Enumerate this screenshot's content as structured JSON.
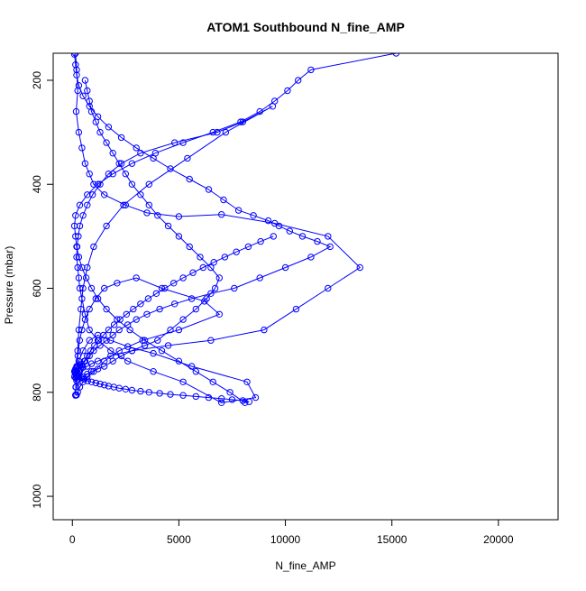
{
  "chart_data": {
    "type": "line",
    "title": "ATOM1 Southbound N_fine_AMP",
    "xlabel": "N_fine_AMP",
    "ylabel": "Pressure (mbar)",
    "xlim": [
      -900,
      22800
    ],
    "ylim": [
      1045,
      148
    ],
    "y_reversed": true,
    "x_ticks": [
      0,
      5000,
      10000,
      15000,
      20000
    ],
    "x_tick_labels": [
      "0",
      "5000",
      "10000",
      "15000",
      "20000"
    ],
    "y_ticks": [
      200,
      400,
      600,
      800,
      1000
    ],
    "y_tick_labels": [
      "200",
      "400",
      "600",
      "800",
      "1000"
    ],
    "grid": false,
    "legend": "none",
    "marker": "open-circle",
    "series_color": "#0000ff",
    "series": [
      {
        "x": [
          150,
          200,
          250,
          180,
          300,
          450,
          600,
          800,
          1000,
          1500,
          2500,
          3500,
          5000,
          7000,
          9500,
          12000,
          13500,
          12000,
          10500,
          9000,
          6500,
          4500,
          2800,
          1800,
          1200,
          900,
          700,
          500,
          400,
          300,
          250,
          200,
          150,
          100,
          150,
          300,
          500,
          800,
          1200,
          1800,
          2600,
          3800,
          5600,
          8200,
          8600,
          7000,
          5200,
          3800,
          2600,
          1800,
          1200,
          800,
          600,
          450,
          350,
          300,
          250,
          200,
          220,
          280,
          350,
          500,
          700,
          950,
          1300,
          1700,
          2300,
          3200,
          4800,
          6800,
          8000,
          9400,
          7200,
          5400,
          3600,
          2400,
          1600,
          1000,
          700,
          500,
          400,
          300,
          250,
          200,
          180,
          160,
          150,
          170,
          200,
          260,
          340,
          450,
          600,
          800,
          1100,
          1500,
          2100,
          3000,
          4200,
          6200,
          6900,
          5000,
          3300,
          2200,
          1500,
          1000,
          700,
          500,
          350,
          250,
          200,
          150
        ],
        "y": [
          148,
          180,
          220,
          260,
          300,
          330,
          360,
          380,
          400,
          420,
          440,
          455,
          462,
          458,
          475,
          500,
          560,
          600,
          640,
          680,
          700,
          710,
          720,
          730,
          740,
          745,
          750,
          752,
          755,
          760,
          765,
          770,
          772,
          770,
          760,
          740,
          720,
          700,
          690,
          700,
          712,
          725,
          750,
          780,
          810,
          820,
          780,
          760,
          740,
          720,
          700,
          680,
          650,
          620,
          600,
          580,
          560,
          540,
          520,
          500,
          480,
          460,
          440,
          420,
          400,
          380,
          360,
          340,
          320,
          300,
          280,
          250,
          300,
          350,
          400,
          440,
          480,
          520,
          560,
          600,
          640,
          680,
          720,
          750,
          770,
          790,
          805,
          790,
          760,
          730,
          700,
          680,
          660,
          640,
          620,
          600,
          590,
          580,
          600,
          625,
          650,
          680,
          700,
          720,
          740,
          760,
          770,
          780,
          790,
          800,
          805,
          806
        ]
      },
      {
        "x": [
          100,
          150,
          200,
          300,
          500,
          800,
          1200,
          1700,
          2300,
          3000,
          3800,
          4600,
          5500,
          6400,
          7100,
          7800,
          8500,
          9200,
          9700,
          10200,
          10800,
          11500,
          12100,
          11200,
          10000,
          8800,
          7600,
          6500,
          5600,
          4800,
          4100,
          3500,
          3000,
          2600,
          2200,
          1900,
          1600,
          1300,
          1000,
          800,
          600,
          450,
          350,
          250,
          200,
          150,
          120,
          100,
          120,
          160,
          220,
          300,
          420,
          560,
          720,
          900,
          1100,
          1300,
          1500,
          1700,
          1950,
          2200,
          2500,
          2800,
          3200,
          3600,
          4100,
          4600,
          5200,
          5800,
          6400,
          7000,
          7500,
          8000,
          8300,
          8100,
          7400,
          6600,
          5800,
          5000,
          4200,
          3400,
          2700,
          2100,
          1600,
          1200,
          900,
          650,
          450,
          300,
          200,
          150,
          100,
          150,
          350,
          700,
          1200,
          1900,
          2800,
          3900,
          5200,
          6600,
          7900,
          8800,
          9500,
          10100,
          10600,
          11200,
          15200
        ],
        "y": [
          150,
          170,
          190,
          210,
          230,
          250,
          270,
          290,
          310,
          330,
          350,
          370,
          390,
          410,
          430,
          450,
          460,
          470,
          480,
          490,
          500,
          510,
          520,
          540,
          560,
          580,
          600,
          610,
          620,
          630,
          640,
          650,
          660,
          670,
          680,
          690,
          700,
          710,
          720,
          730,
          740,
          745,
          748,
          750,
          752,
          755,
          758,
          760,
          762,
          765,
          768,
          770,
          772,
          775,
          778,
          780,
          782,
          784,
          786,
          788,
          790,
          792,
          794,
          796,
          798,
          800,
          802,
          804,
          806,
          808,
          810,
          812,
          814,
          816,
          818,
          820,
          800,
          780,
          760,
          740,
          720,
          700,
          680,
          660,
          640,
          620,
          600,
          580,
          560,
          540,
          520,
          500,
          480,
          460,
          440,
          420,
          400,
          380,
          360,
          340,
          320,
          300,
          280,
          260,
          240,
          220,
          200,
          180,
          148
        ]
      },
      {
        "x": [
          600,
          700,
          800,
          900,
          1100,
          1300,
          1600,
          1900,
          2200,
          2500,
          2800,
          3200,
          3600,
          4000,
          4500,
          5000,
          5500,
          6000,
          6500,
          6900,
          6700,
          6300,
          5800,
          5200,
          4600,
          4000,
          3400,
          2800,
          2300,
          1900,
          1500,
          1200,
          900,
          700,
          500,
          400,
          300,
          250,
          200,
          260,
          340,
          440,
          560,
          700,
          860,
          1040,
          1240,
          1460,
          1700,
          1960,
          2240,
          2540,
          2860,
          3200,
          3560,
          3940,
          4340,
          4760,
          5200,
          5660,
          6140,
          6640,
          7160,
          7700,
          8260,
          8840,
          9440
        ],
        "y": [
          200,
          220,
          240,
          260,
          280,
          300,
          320,
          340,
          360,
          380,
          400,
          420,
          440,
          460,
          480,
          500,
          520,
          540,
          560,
          580,
          600,
          620,
          640,
          660,
          680,
          700,
          710,
          720,
          730,
          740,
          750,
          755,
          760,
          765,
          770,
          772,
          774,
          776,
          778,
          770,
          760,
          750,
          740,
          730,
          720,
          710,
          700,
          690,
          680,
          670,
          660,
          650,
          640,
          630,
          620,
          610,
          600,
          590,
          580,
          570,
          560,
          550,
          540,
          530,
          520,
          510,
          500
        ]
      }
    ]
  }
}
